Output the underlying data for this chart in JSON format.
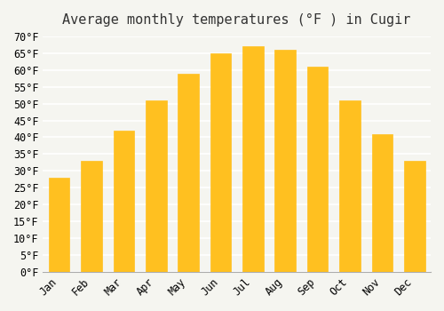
{
  "title": "Average monthly temperatures (°F ) in Cugir",
  "months": [
    "Jan",
    "Feb",
    "Mar",
    "Apr",
    "May",
    "Jun",
    "Jul",
    "Aug",
    "Sep",
    "Oct",
    "Nov",
    "Dec"
  ],
  "values": [
    28,
    33,
    42,
    51,
    59,
    65,
    67,
    66,
    61,
    51,
    41,
    33
  ],
  "bar_color": "#FFC020",
  "bar_edge_color": "#FFD070",
  "ylim": [
    0,
    70
  ],
  "ytick_step": 5,
  "background_color": "#F5F5F0",
  "grid_color": "#FFFFFF",
  "title_fontsize": 11,
  "tick_fontsize": 8.5,
  "font_family": "monospace"
}
